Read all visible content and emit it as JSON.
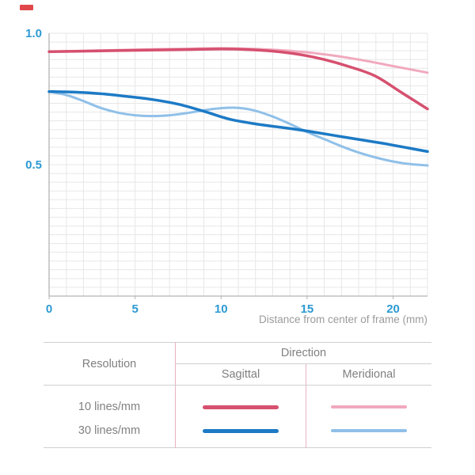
{
  "brand_mark_color": "#e0474a",
  "text_color": "#808080",
  "chart_data": {
    "type": "line",
    "xlabel": "Distance from center of frame (mm)",
    "ylabel": "",
    "xlim": [
      0,
      22
    ],
    "ylim": [
      0,
      1.0
    ],
    "x_ticks": [
      0,
      5,
      10,
      15,
      20
    ],
    "y_ticks": [
      0.5,
      1.0
    ],
    "grid": true,
    "grid_x_step": 1,
    "grid_y_divisions": 30,
    "legend_position": "bottom-table",
    "colors": {
      "grid": "#e7e7e7",
      "axis": "#b3b3b3",
      "tick_label": "#2d9ad3",
      "axis_label": "#9b9b9b"
    },
    "series": [
      {
        "name": "10 lines/mm Sagittal",
        "color": "#d6506f",
        "width": 3.5,
        "legend_thickness": 5,
        "z": 1,
        "x": [
          0,
          2,
          4,
          6,
          8,
          10,
          11.5,
          13,
          14.5,
          16,
          17.5,
          19,
          20.5,
          22
        ],
        "y": [
          0.93,
          0.932,
          0.934,
          0.936,
          0.938,
          0.94,
          0.938,
          0.932,
          0.92,
          0.9,
          0.872,
          0.836,
          0.774,
          0.712
        ]
      },
      {
        "name": "10 lines/mm Meridional",
        "color": "#f1a9bd",
        "width": 3,
        "legend_thickness": 3.5,
        "z": 0,
        "x": [
          0,
          2,
          4,
          6,
          8,
          10,
          12,
          14,
          16,
          18,
          20,
          22
        ],
        "y": [
          0.93,
          0.933,
          0.936,
          0.939,
          0.941,
          0.943,
          0.94,
          0.933,
          0.92,
          0.9,
          0.875,
          0.85
        ]
      },
      {
        "name": "30 lines/mm Sagittal",
        "color": "#1d7ac5",
        "width": 3.5,
        "legend_thickness": 5,
        "z": 1,
        "x": [
          0,
          1.5,
          3,
          4.5,
          6,
          7.5,
          9,
          10.5,
          12,
          13.5,
          15,
          16.5,
          18,
          19.5,
          21,
          22
        ],
        "y": [
          0.778,
          0.776,
          0.77,
          0.76,
          0.748,
          0.73,
          0.703,
          0.673,
          0.655,
          0.642,
          0.628,
          0.612,
          0.596,
          0.58,
          0.562,
          0.55
        ]
      },
      {
        "name": "30 lines/mm Meridional",
        "color": "#90c0e8",
        "width": 3,
        "legend_thickness": 3.5,
        "z": 0,
        "x": [
          0,
          1,
          2,
          3,
          4,
          5,
          6,
          7,
          8,
          9,
          10,
          11,
          12,
          13,
          14,
          15,
          16,
          17,
          18,
          19,
          20,
          21,
          22
        ],
        "y": [
          0.778,
          0.765,
          0.742,
          0.716,
          0.698,
          0.688,
          0.685,
          0.688,
          0.696,
          0.707,
          0.715,
          0.716,
          0.705,
          0.683,
          0.655,
          0.624,
          0.597,
          0.57,
          0.546,
          0.527,
          0.512,
          0.502,
          0.497
        ]
      }
    ]
  },
  "legend_table": {
    "resolution_header": "Resolution",
    "direction_header": "Direction",
    "columns": [
      "Sagittal",
      "Meridional"
    ],
    "rows": [
      {
        "label": "10 lines/mm"
      },
      {
        "label": "30 lines/mm"
      }
    ],
    "h_border_color": "#cfcfcf",
    "v_border_color": "#e6b3c0"
  }
}
